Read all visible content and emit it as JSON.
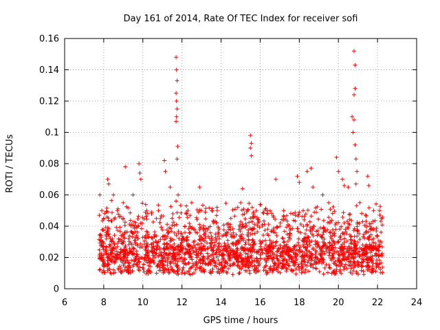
{
  "chart_data": {
    "type": "scatter",
    "title": "Day 161 of 2014, Rate Of TEC Index for receiver sofi",
    "xlabel": "GPS time / hours",
    "ylabel": "ROTI / TECUs",
    "xlim": [
      6,
      24
    ],
    "ylim": [
      0,
      0.16
    ],
    "xticks": [
      "6",
      "8",
      "10",
      "12",
      "14",
      "16",
      "18",
      "20",
      "22",
      "24"
    ],
    "yticks": [
      "0",
      "0.02",
      "0.04",
      "0.06",
      "0.08",
      "0.1",
      "0.12",
      "0.14",
      "0.16"
    ],
    "grid": true,
    "marker": "plus",
    "color": "#ff0000",
    "time_range_hours": [
      7.75,
      22.3
    ],
    "baseline_roti": 0.018,
    "series": [
      {
        "name": "ROTI",
        "points": [
          [
            7.8,
            0.06
          ],
          [
            7.9,
            0.05
          ],
          [
            8.0,
            0.045
          ],
          [
            8.2,
            0.07
          ],
          [
            8.25,
            0.067
          ],
          [
            8.5,
            0.06
          ],
          [
            8.7,
            0.05
          ],
          [
            9.0,
            0.055
          ],
          [
            9.1,
            0.078
          ],
          [
            9.5,
            0.06
          ],
          [
            9.8,
            0.08
          ],
          [
            9.85,
            0.074
          ],
          [
            9.9,
            0.07
          ],
          [
            10.2,
            0.05
          ],
          [
            10.8,
            0.05
          ],
          [
            11.1,
            0.082
          ],
          [
            11.15,
            0.075
          ],
          [
            11.4,
            0.065
          ],
          [
            11.7,
            0.148
          ],
          [
            11.72,
            0.14
          ],
          [
            11.75,
            0.133
          ],
          [
            11.7,
            0.125
          ],
          [
            11.72,
            0.12
          ],
          [
            11.75,
            0.115
          ],
          [
            11.72,
            0.11
          ],
          [
            11.7,
            0.107
          ],
          [
            11.78,
            0.091
          ],
          [
            11.75,
            0.083
          ],
          [
            11.8,
            0.06
          ],
          [
            12.5,
            0.055
          ],
          [
            12.9,
            0.065
          ],
          [
            13.0,
            0.05
          ],
          [
            13.8,
            0.05
          ],
          [
            14.5,
            0.045
          ],
          [
            15.0,
            0.055
          ],
          [
            15.1,
            0.064
          ],
          [
            15.5,
            0.098
          ],
          [
            15.55,
            0.093
          ],
          [
            15.5,
            0.09
          ],
          [
            15.55,
            0.085
          ],
          [
            15.8,
            0.05
          ],
          [
            16.8,
            0.07
          ],
          [
            17.2,
            0.05
          ],
          [
            17.9,
            0.072
          ],
          [
            18.0,
            0.068
          ],
          [
            18.2,
            0.05
          ],
          [
            18.4,
            0.075
          ],
          [
            18.6,
            0.077
          ],
          [
            18.7,
            0.065
          ],
          [
            19.2,
            0.06
          ],
          [
            19.5,
            0.055
          ],
          [
            19.9,
            0.084
          ],
          [
            20.0,
            0.075
          ],
          [
            20.2,
            0.07
          ],
          [
            20.3,
            0.066
          ],
          [
            20.5,
            0.065
          ],
          [
            20.7,
            0.11
          ],
          [
            20.75,
            0.1
          ],
          [
            20.8,
            0.152
          ],
          [
            20.85,
            0.143
          ],
          [
            20.85,
            0.128
          ],
          [
            20.8,
            0.124
          ],
          [
            20.8,
            0.108
          ],
          [
            20.85,
            0.092
          ],
          [
            20.9,
            0.083
          ],
          [
            20.95,
            0.075
          ],
          [
            20.9,
            0.067
          ],
          [
            21.1,
            0.055
          ],
          [
            21.5,
            0.072
          ],
          [
            21.55,
            0.066
          ],
          [
            21.8,
            0.05
          ],
          [
            22.1,
            0.05
          ],
          [
            22.2,
            0.045
          ]
        ]
      }
    ]
  }
}
